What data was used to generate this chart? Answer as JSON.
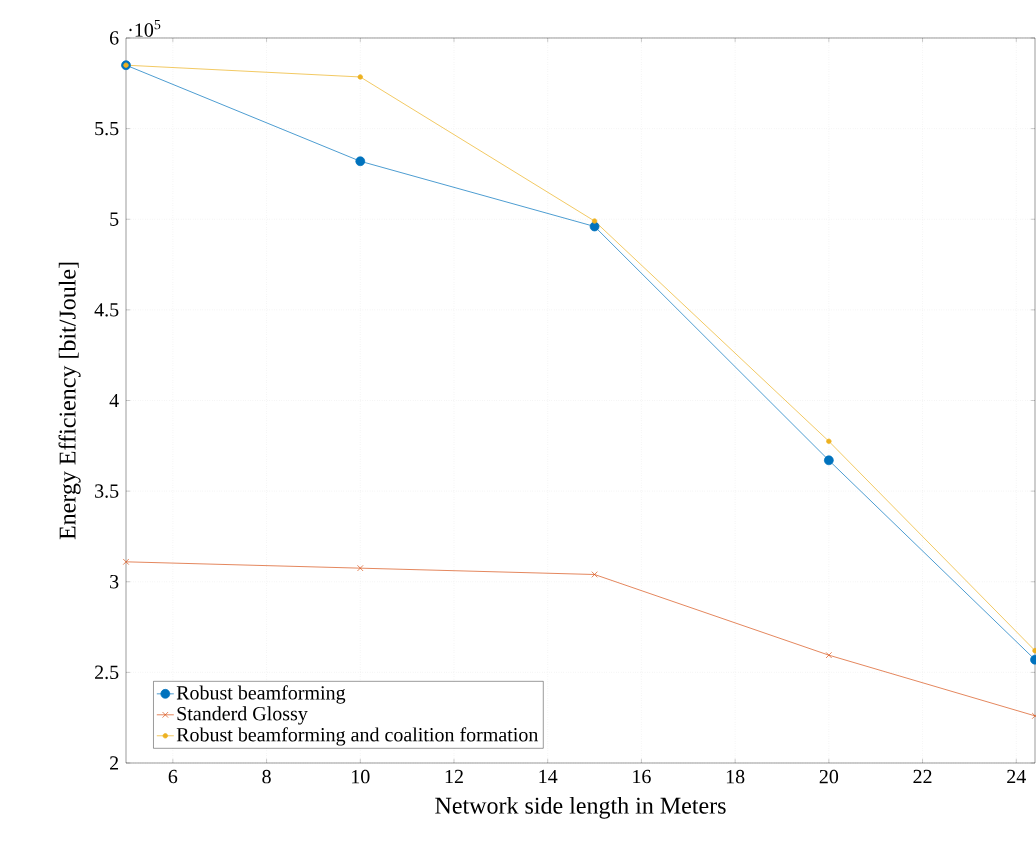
{
  "chart_data": {
    "type": "line",
    "xlabel": "Network side length in Meters",
    "ylabel": "Energy Efficiency    [bit/Joule]",
    "annotations": [
      "·10$^{5}$"
    ],
    "xlim": [
      5,
      24.4
    ],
    "ylim": [
      2,
      6
    ],
    "xticks": [
      6,
      8,
      10,
      12,
      14,
      16,
      18,
      20,
      22,
      24
    ],
    "yticks": [
      2,
      2.5,
      3,
      3.5,
      4,
      4.5,
      5,
      5.5,
      6
    ],
    "grid": true,
    "legend": "bottom left",
    "line_style": "solid",
    "series": [
      {
        "name": "Robust beamforming",
        "color": "#0072bd",
        "marker": "circle",
        "x": [
          5,
          10,
          15,
          20,
          24.4
        ],
        "values": [
          5.85,
          5.32,
          4.96,
          3.67,
          2.57
        ]
      },
      {
        "name": "Standerd Glossy",
        "color": "#d95319",
        "marker": "cross",
        "x": [
          5,
          10,
          15,
          20,
          24.4
        ],
        "values": [
          3.11,
          3.075,
          3.04,
          2.595,
          2.26
        ]
      },
      {
        "name": "Robust beamforming and coalition formation",
        "color": "#edb120",
        "marker": "circle",
        "x": [
          5,
          10,
          15,
          20,
          24.4
        ],
        "values": [
          5.85,
          5.785,
          4.99,
          3.775,
          2.62
        ]
      }
    ]
  }
}
